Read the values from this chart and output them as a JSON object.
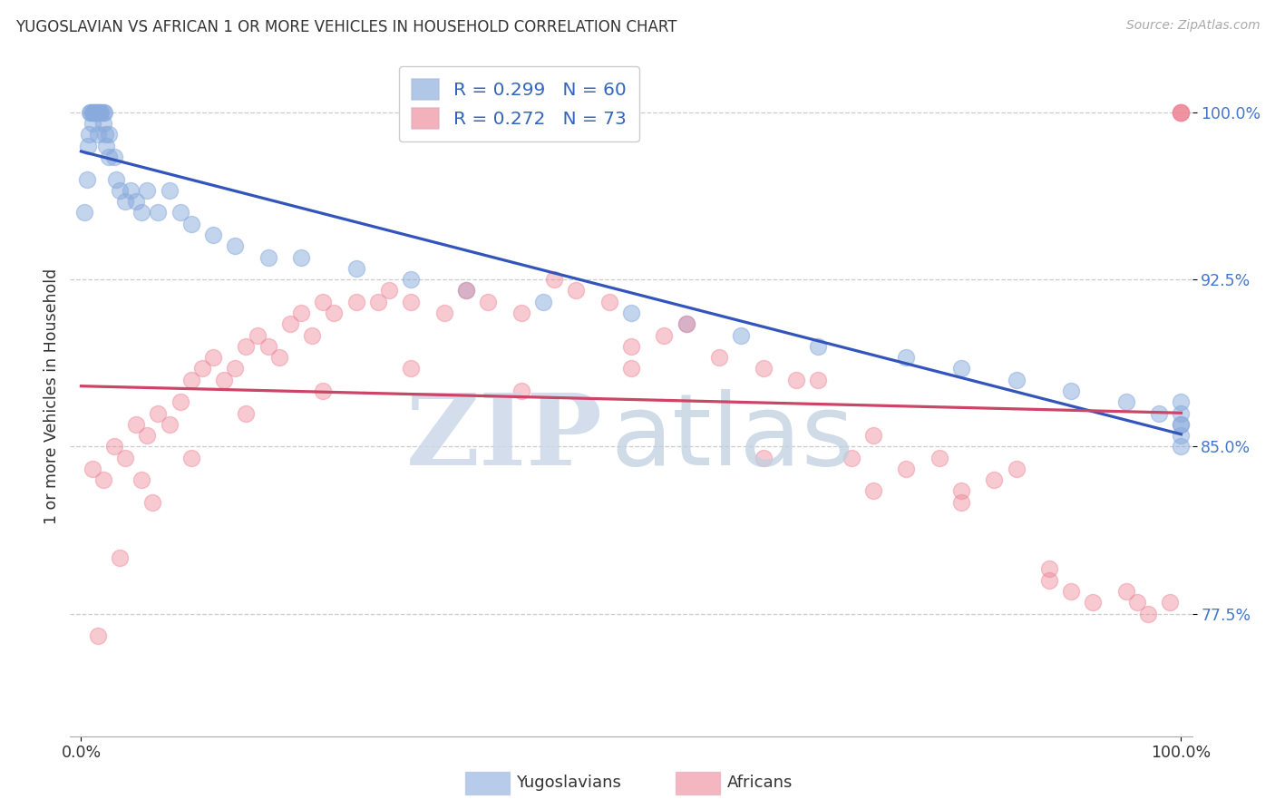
{
  "title": "YUGOSLAVIAN VS AFRICAN 1 OR MORE VEHICLES IN HOUSEHOLD CORRELATION CHART",
  "source": "Source: ZipAtlas.com",
  "ylabel": "1 or more Vehicles in Household",
  "blue_R": 0.299,
  "blue_N": 60,
  "pink_R": 0.272,
  "pink_N": 73,
  "blue_color": "#88aadd",
  "pink_color": "#ee8899",
  "blue_line_color": "#3355bb",
  "pink_line_color": "#cc4466",
  "ylim": [
    72.0,
    102.5
  ],
  "xlim": [
    -1.0,
    101.0
  ],
  "yticks": [
    77.5,
    85.0,
    92.5,
    100.0
  ],
  "blue_x": [
    0.3,
    0.5,
    0.6,
    0.7,
    0.8,
    0.9,
    1.0,
    1.0,
    1.1,
    1.2,
    1.3,
    1.4,
    1.5,
    1.5,
    1.6,
    1.7,
    1.8,
    2.0,
    2.0,
    2.1,
    2.2,
    2.3,
    2.5,
    2.5,
    3.0,
    3.2,
    3.5,
    4.0,
    4.5,
    5.0,
    5.5,
    6.0,
    7.0,
    8.0,
    9.0,
    10.0,
    12.0,
    14.0,
    17.0,
    20.0,
    25.0,
    30.0,
    35.0,
    42.0,
    50.0,
    55.0,
    60.0,
    67.0,
    75.0,
    80.0,
    85.0,
    90.0,
    95.0,
    98.0,
    100.0,
    100.0,
    100.0,
    100.0,
    100.0,
    100.0
  ],
  "blue_y": [
    95.5,
    97.0,
    98.5,
    99.0,
    100.0,
    100.0,
    100.0,
    99.5,
    100.0,
    100.0,
    100.0,
    100.0,
    100.0,
    99.0,
    100.0,
    100.0,
    100.0,
    100.0,
    99.5,
    100.0,
    99.0,
    98.5,
    99.0,
    98.0,
    98.0,
    97.0,
    96.5,
    96.0,
    96.5,
    96.0,
    95.5,
    96.5,
    95.5,
    96.5,
    95.5,
    95.0,
    94.5,
    94.0,
    93.5,
    93.5,
    93.0,
    92.5,
    92.0,
    91.5,
    91.0,
    90.5,
    90.0,
    89.5,
    89.0,
    88.5,
    88.0,
    87.5,
    87.0,
    86.5,
    86.0,
    86.5,
    87.0,
    86.0,
    85.5,
    85.0
  ],
  "pink_x": [
    1.0,
    2.0,
    3.0,
    4.0,
    5.0,
    5.5,
    6.0,
    7.0,
    8.0,
    9.0,
    10.0,
    11.0,
    12.0,
    13.0,
    14.0,
    15.0,
    16.0,
    17.0,
    18.0,
    19.0,
    20.0,
    21.0,
    22.0,
    23.0,
    25.0,
    27.0,
    28.0,
    30.0,
    33.0,
    35.0,
    37.0,
    40.0,
    43.0,
    45.0,
    48.0,
    50.0,
    53.0,
    55.0,
    58.0,
    62.0,
    65.0,
    67.0,
    70.0,
    72.0,
    75.0,
    78.0,
    80.0,
    83.0,
    85.0,
    88.0,
    90.0,
    92.0,
    95.0,
    97.0,
    99.0,
    100.0,
    1.5,
    3.5,
    6.5,
    10.0,
    15.0,
    22.0,
    30.0,
    40.0,
    50.0,
    62.0,
    72.0,
    80.0,
    88.0,
    96.0,
    100.0,
    100.0,
    100.0
  ],
  "pink_y": [
    84.0,
    83.5,
    85.0,
    84.5,
    86.0,
    83.5,
    85.5,
    86.5,
    86.0,
    87.0,
    88.0,
    88.5,
    89.0,
    88.0,
    88.5,
    89.5,
    90.0,
    89.5,
    89.0,
    90.5,
    91.0,
    90.0,
    91.5,
    91.0,
    91.5,
    91.5,
    92.0,
    91.5,
    91.0,
    92.0,
    91.5,
    91.0,
    92.5,
    92.0,
    91.5,
    89.5,
    90.0,
    90.5,
    89.0,
    88.5,
    88.0,
    88.0,
    84.5,
    85.5,
    84.0,
    84.5,
    83.0,
    83.5,
    84.0,
    79.5,
    78.5,
    78.0,
    78.5,
    77.5,
    78.0,
    100.0,
    76.5,
    80.0,
    82.5,
    84.5,
    86.5,
    87.5,
    88.5,
    87.5,
    88.5,
    84.5,
    83.0,
    82.5,
    79.0,
    78.0,
    100.0,
    100.0,
    100.0
  ]
}
